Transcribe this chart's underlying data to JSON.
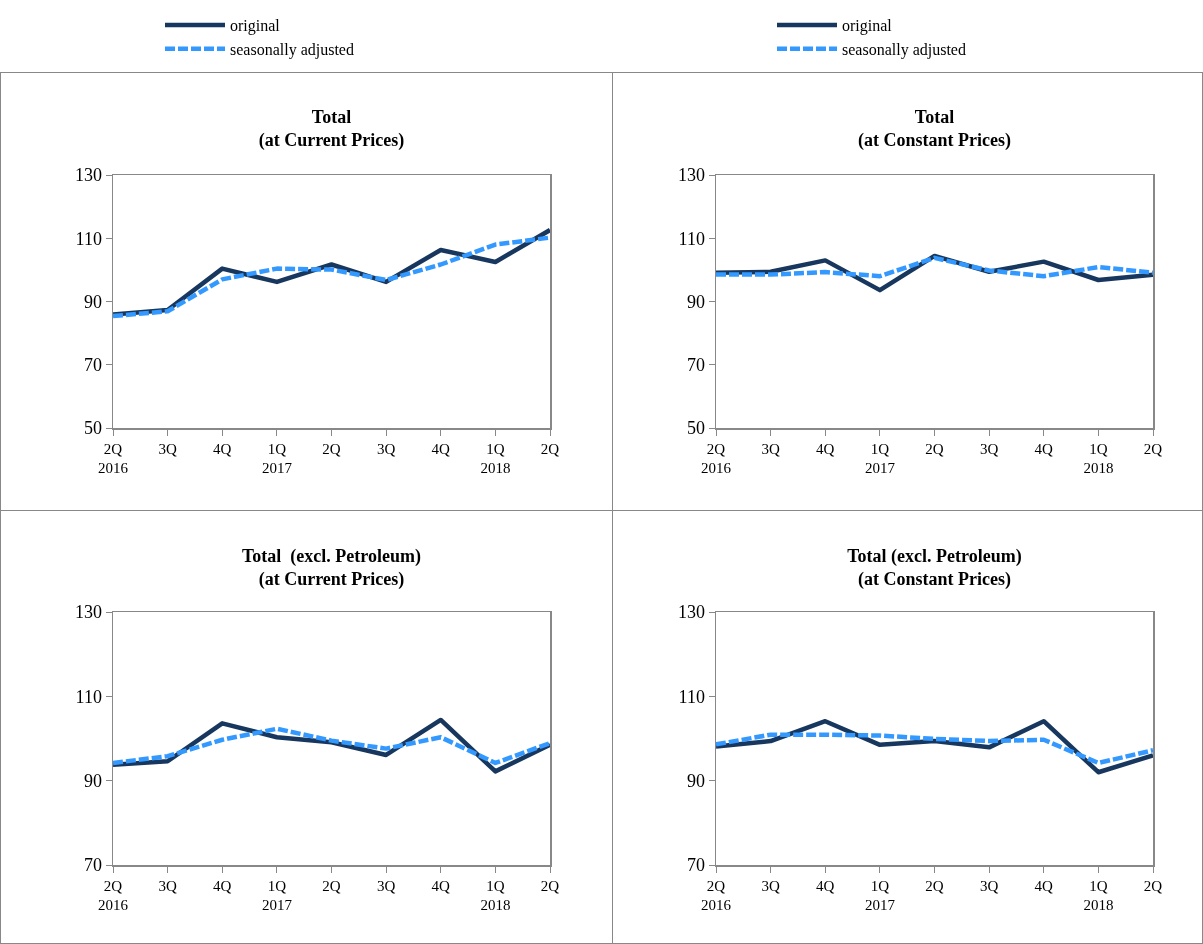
{
  "chart_data": [
    {
      "type": "line",
      "title": "Total\n(at Current Prices)",
      "categories": [
        "2Q\n2016",
        "3Q",
        "4Q",
        "1Q\n2017",
        "2Q",
        "3Q",
        "4Q",
        "1Q\n2018",
        "2Q"
      ],
      "ylim": [
        50,
        130
      ],
      "yticks": [
        50,
        70,
        90,
        110,
        130
      ],
      "grid": false,
      "legend": "top",
      "series": [
        {
          "name": "original",
          "color": "#17375e",
          "line_style": "solid",
          "values": [
            85.9,
            87.3,
            100.4,
            96.2,
            101.7,
            96.2,
            106.3,
            102.5,
            112.6
          ]
        },
        {
          "name": "seasonally adjusted",
          "color": "#3399ff",
          "line_style": "dashed",
          "values": [
            85.4,
            86.9,
            97,
            100.4,
            100.1,
            96.8,
            101.7,
            108,
            110.2
          ]
        }
      ]
    },
    {
      "type": "line",
      "title": "Total\n(at Constant Prices)",
      "categories": [
        "2Q\n2016",
        "3Q",
        "4Q",
        "1Q\n2017",
        "2Q",
        "3Q",
        "4Q",
        "1Q\n2018",
        "2Q"
      ],
      "ylim": [
        50,
        130
      ],
      "yticks": [
        50,
        70,
        90,
        110,
        130
      ],
      "grid": false,
      "legend": "top",
      "series": [
        {
          "name": "original",
          "color": "#17375e",
          "line_style": "solid",
          "values": [
            99.1,
            99.4,
            103,
            93.6,
            104.4,
            99.4,
            102.6,
            96.8,
            98.5
          ]
        },
        {
          "name": "seasonally adjusted",
          "color": "#3399ff",
          "line_style": "dashed",
          "values": [
            98.5,
            98.5,
            99.3,
            98,
            103.8,
            99.8,
            98,
            100.9,
            99.1
          ]
        }
      ]
    },
    {
      "type": "line",
      "title": "Total  (excl. Petroleum)\n(at Current Prices)",
      "categories": [
        "2Q\n2016",
        "3Q",
        "4Q",
        "1Q\n2017",
        "2Q",
        "3Q",
        "4Q",
        "1Q\n2018",
        "2Q"
      ],
      "ylim": [
        70,
        130
      ],
      "yticks": [
        70,
        90,
        110,
        130
      ],
      "grid": false,
      "series": [
        {
          "color": "#17375e",
          "line_style": "solid",
          "values": [
            93.8,
            94.6,
            103.6,
            100.3,
            99.1,
            96.1,
            104.4,
            92.2,
            98.5
          ]
        },
        {
          "color": "#3399ff",
          "line_style": "dashed",
          "values": [
            94.2,
            95.8,
            99.7,
            102.3,
            99.5,
            97.6,
            100.3,
            94.2,
            98.9
          ]
        }
      ]
    },
    {
      "type": "line",
      "title": "Total (excl. Petroleum)\n(at Constant Prices)",
      "categories": [
        "2Q\n2016",
        "3Q",
        "4Q",
        "1Q\n2017",
        "2Q",
        "3Q",
        "4Q",
        "1Q\n2018",
        "2Q"
      ],
      "ylim": [
        70,
        130
      ],
      "yticks": [
        70,
        90,
        110,
        130
      ],
      "grid": false,
      "series": [
        {
          "color": "#17375e",
          "line_style": "solid",
          "values": [
            98.1,
            99.4,
            104.1,
            98.5,
            99.4,
            97.9,
            104.1,
            92,
            96
          ]
        },
        {
          "color": "#3399ff",
          "line_style": "dashed",
          "values": [
            98.6,
            100.9,
            100.9,
            100.7,
            99.9,
            99.4,
            99.7,
            94.2,
            97.2
          ]
        }
      ]
    }
  ]
}
